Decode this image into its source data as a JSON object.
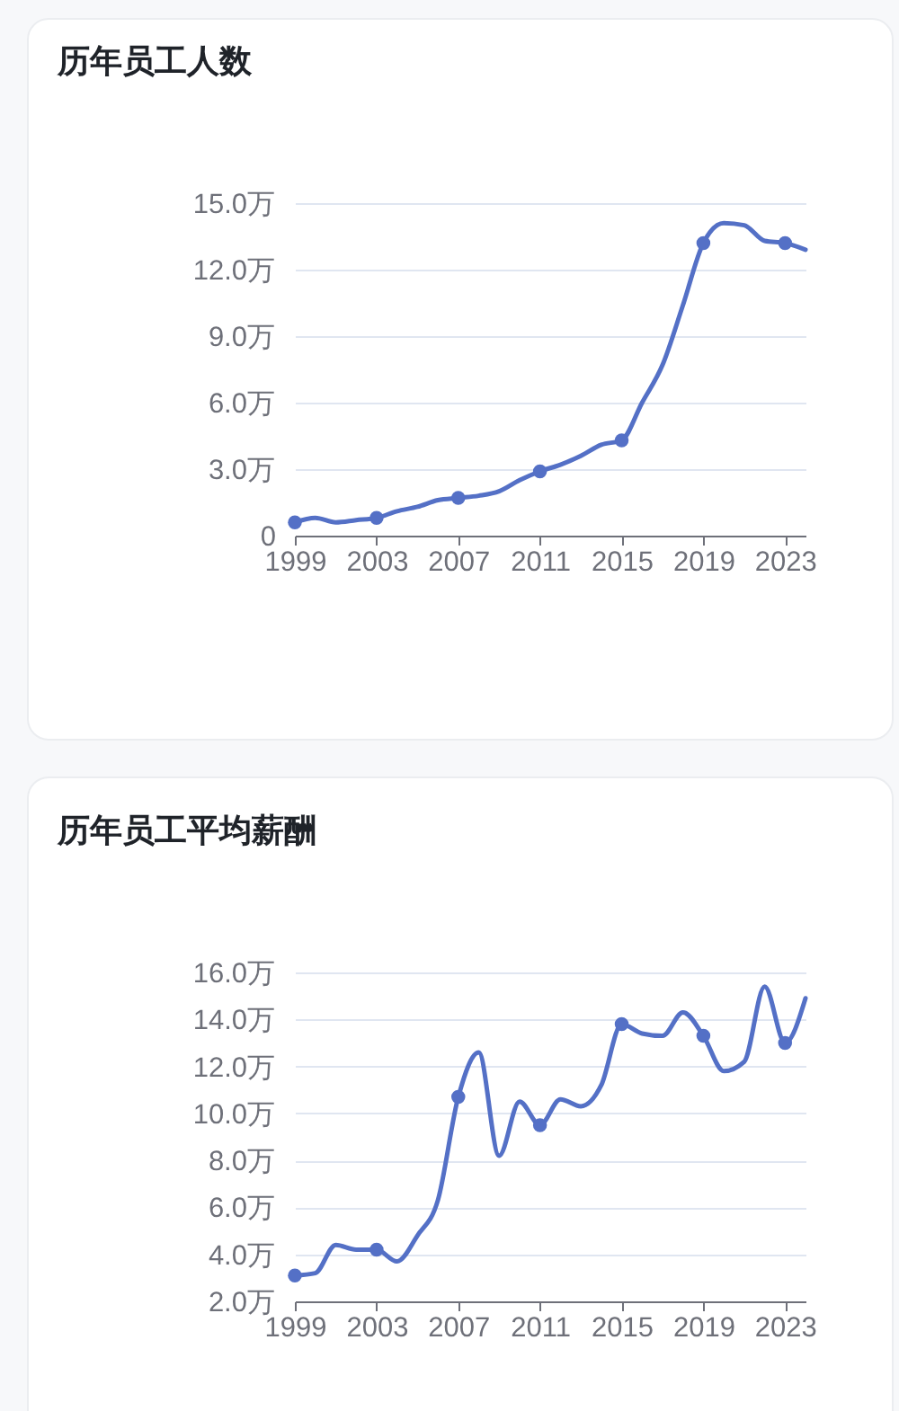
{
  "chart_data": [
    {
      "type": "line",
      "title": "历年员工人数",
      "xlim": [
        1999,
        2024
      ],
      "xticks": [
        1999,
        2003,
        2007,
        2011,
        2015,
        2019,
        2023
      ],
      "ylim": [
        0,
        15
      ],
      "yticks": [
        0,
        {
          "value": 3,
          "label": "3.0万"
        },
        {
          "value": 6,
          "label": "6.0万"
        },
        {
          "value": 9,
          "label": "9.0万"
        },
        {
          "value": 12,
          "label": "12.0万"
        },
        {
          "value": 15,
          "label": "15.0万"
        }
      ],
      "grid": "y",
      "series": [
        {
          "color": "#5470c6",
          "x": [
            1999,
            2000,
            2001,
            2002,
            2003,
            2004,
            2005,
            2006,
            2007,
            2008,
            2009,
            2010,
            2011,
            2012,
            2013,
            2014,
            2015,
            2016,
            2017,
            2018,
            2019,
            2020,
            2021,
            2022,
            2023,
            2024
          ],
          "values": [
            0.6,
            0.8,
            0.6,
            0.7,
            0.8,
            1.1,
            1.3,
            1.6,
            1.7,
            1.8,
            2.0,
            2.5,
            2.9,
            3.2,
            3.6,
            4.1,
            4.3,
            6.0,
            7.7,
            10.4,
            13.2,
            14.1,
            14.0,
            13.3,
            13.2,
            12.9
          ]
        },
        {
          "type": "scatter",
          "marker": "circle",
          "color": "#5470c6",
          "x": [
            1999,
            2003,
            2007,
            2011,
            2015,
            2019,
            2023
          ],
          "values": [
            0.6,
            0.8,
            1.7,
            2.9,
            4.3,
            13.2,
            13.2
          ]
        }
      ]
    },
    {
      "type": "line",
      "title": "历年员工平均薪酬",
      "xlim": [
        1999,
        2024
      ],
      "xticks": [
        1999,
        2003,
        2007,
        2011,
        2015,
        2019,
        2023
      ],
      "ylim": [
        2,
        16
      ],
      "yticks": [
        {
          "value": 2,
          "label": "2.0万"
        },
        {
          "value": 4,
          "label": "4.0万"
        },
        {
          "value": 6,
          "label": "6.0万"
        },
        {
          "value": 8,
          "label": "8.0万"
        },
        {
          "value": 10,
          "label": "10.0万"
        },
        {
          "value": 12,
          "label": "12.0万"
        },
        {
          "value": 14,
          "label": "14.0万"
        },
        {
          "value": 16,
          "label": "16.0万"
        }
      ],
      "grid": "y",
      "series": [
        {
          "color": "#5470c6",
          "x": [
            1999,
            2000,
            2001,
            2002,
            2003,
            2004,
            2005,
            2006,
            2007,
            2008,
            2009,
            2010,
            2011,
            2012,
            2013,
            2014,
            2015,
            2016,
            2017,
            2018,
            2019,
            2020,
            2021,
            2022,
            2023,
            2024
          ],
          "values": [
            3.1,
            3.2,
            4.4,
            4.2,
            4.2,
            3.7,
            4.8,
            6.3,
            10.7,
            12.6,
            8.2,
            10.5,
            9.5,
            10.6,
            10.3,
            11.2,
            13.8,
            13.4,
            13.3,
            14.3,
            13.3,
            11.8,
            12.2,
            15.4,
            13.0,
            14.9
          ]
        },
        {
          "type": "scatter",
          "marker": "circle",
          "color": "#5470c6",
          "x": [
            1999,
            2003,
            2007,
            2011,
            2015,
            2019,
            2023
          ],
          "values": [
            3.1,
            4.2,
            10.7,
            9.5,
            13.8,
            13.3,
            13.0
          ]
        }
      ]
    }
  ]
}
